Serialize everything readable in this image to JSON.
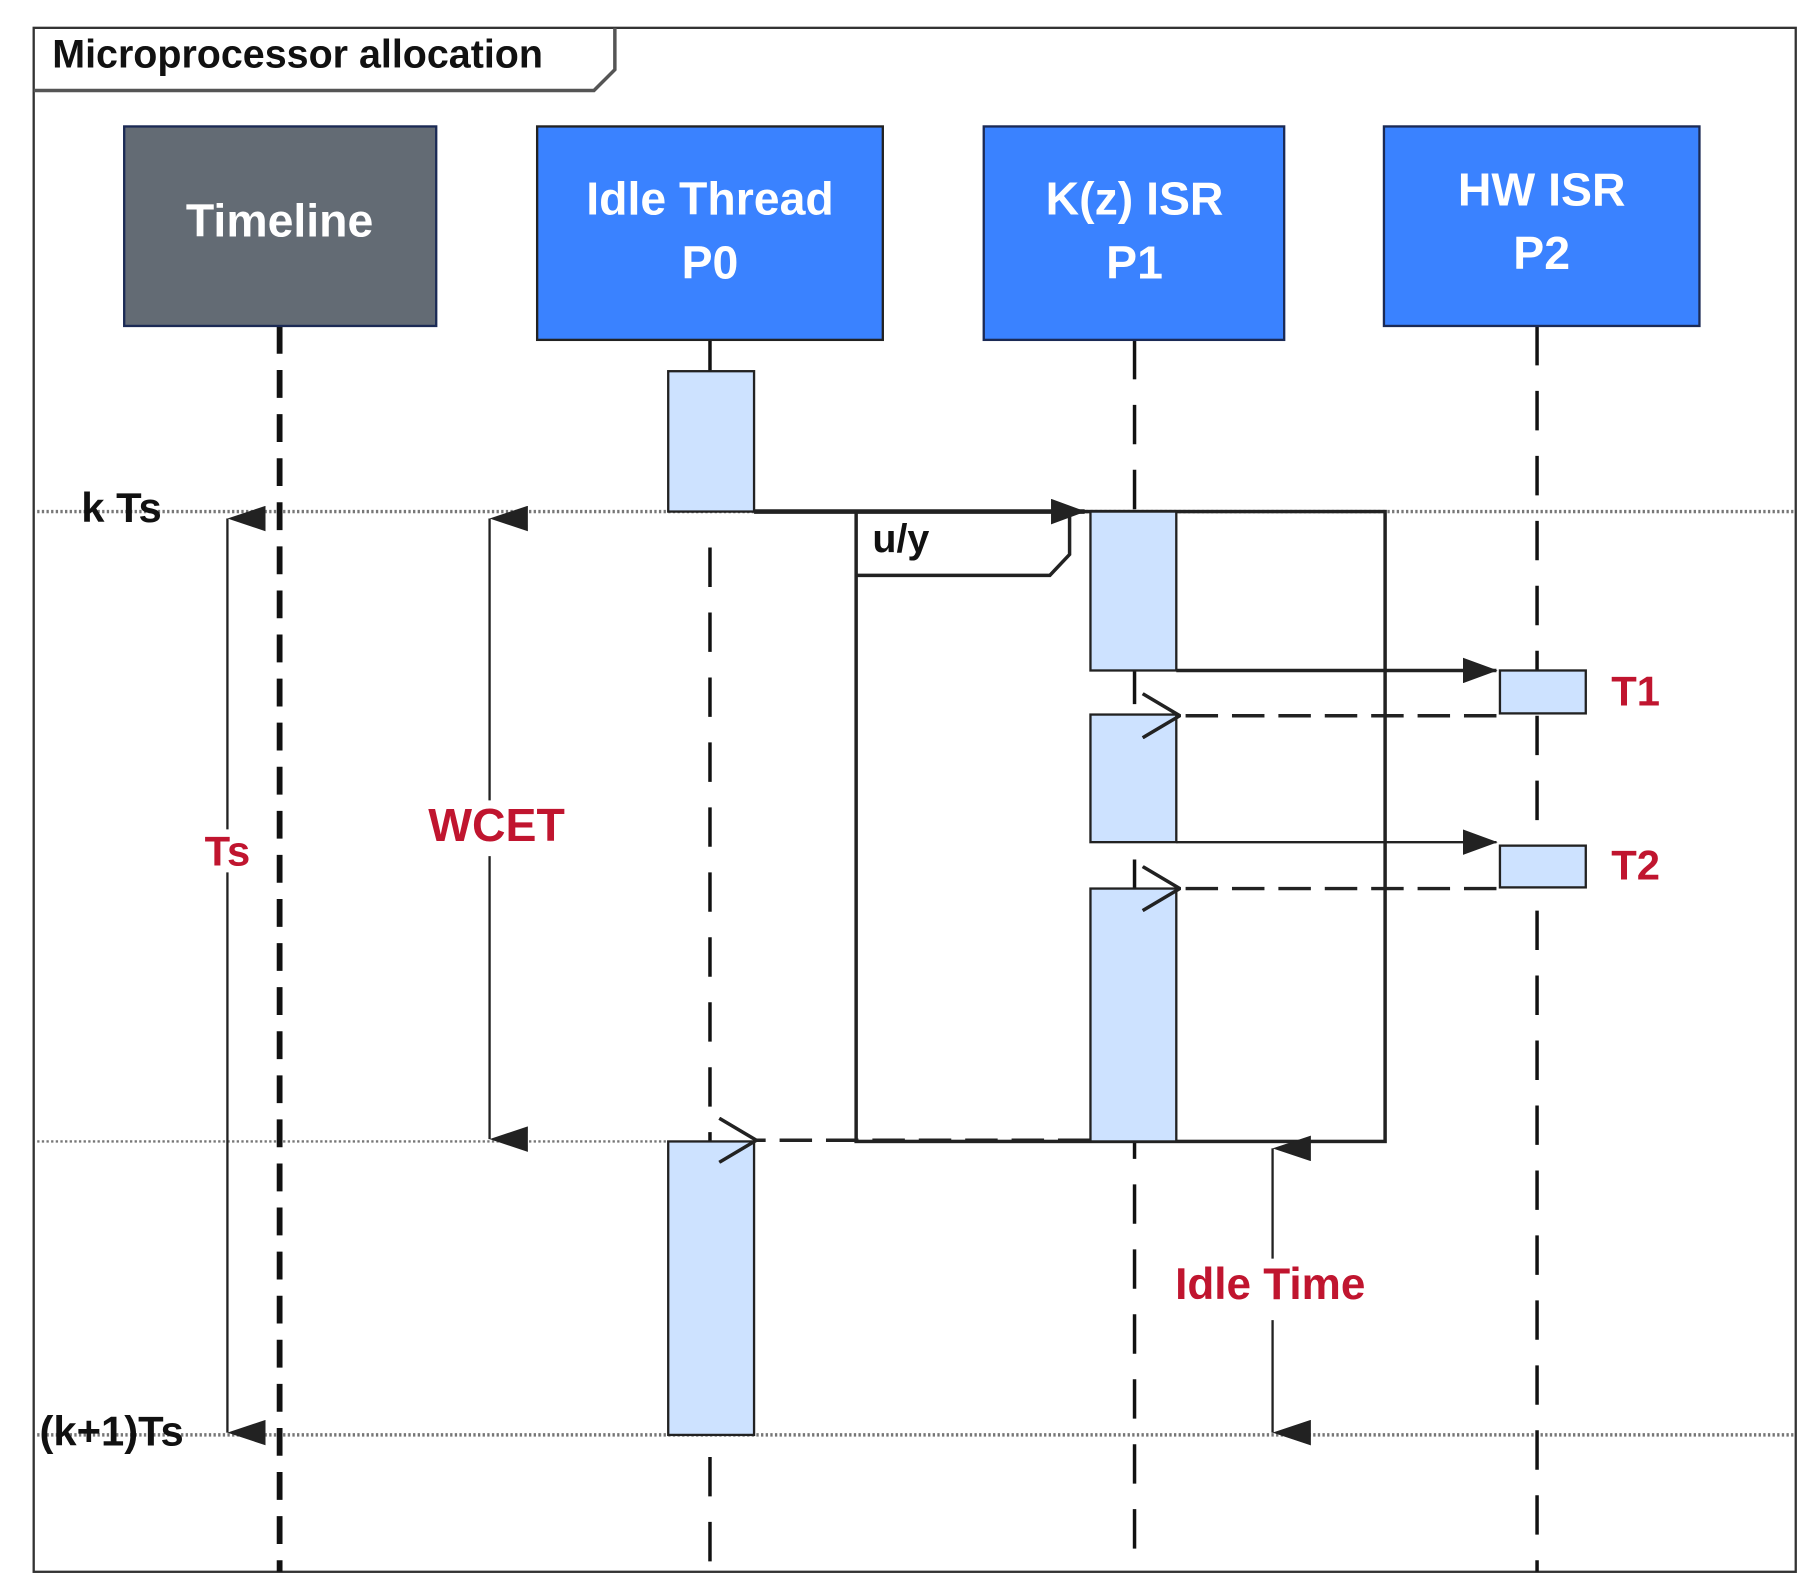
{
  "frame_title": "Microprocessor allocation",
  "participants": [
    {
      "label_line1": "Timeline",
      "label_line2": "",
      "color": "#636b74"
    },
    {
      "label_line1": "Idle Thread",
      "label_line2": "P0",
      "color": "#3a82ff"
    },
    {
      "label_line1": "K(z) ISR",
      "label_line2": "P1",
      "color": "#3a82ff"
    },
    {
      "label_line1": "HW ISR",
      "label_line2": "P2",
      "color": "#3a82ff"
    }
  ],
  "time_marks": {
    "start": "k Ts",
    "end": "(k+1)Ts"
  },
  "intervals": {
    "period": "Ts",
    "wcet": "WCET",
    "idle": "Idle Time"
  },
  "loop_label": "u/y",
  "tasks": [
    "T1",
    "T2"
  ],
  "colors": {
    "activation": "#cde2ff",
    "annotation": "#c0152f"
  }
}
